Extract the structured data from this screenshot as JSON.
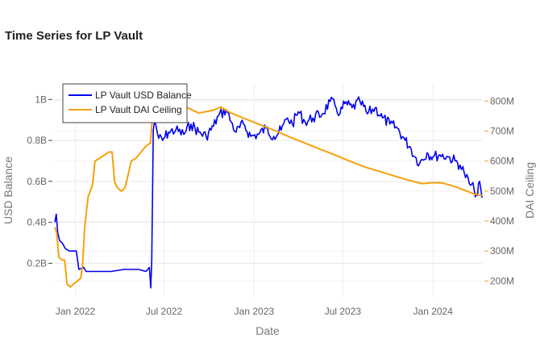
{
  "chart_data": {
    "type": "line",
    "title": "Time Series for LP Vault",
    "xlabel": "Date",
    "ylabel_left": "USD Balance",
    "ylabel_right": "DAI Ceiling",
    "x_range": [
      "2021-11-20",
      "2024-04-10"
    ],
    "x_ticks": [
      {
        "date": "2022-01-01",
        "label": "Jan 2022"
      },
      {
        "date": "2022-07-01",
        "label": "Jul 2022"
      },
      {
        "date": "2023-01-01",
        "label": "Jan 2023"
      },
      {
        "date": "2023-07-01",
        "label": "Jul 2023"
      },
      {
        "date": "2024-01-01",
        "label": "Jan 2024"
      }
    ],
    "y_left": {
      "range": [
        40000000,
        1080000000
      ],
      "ticks": [
        {
          "value": 200000000,
          "label": "0.2B"
        },
        {
          "value": 400000000,
          "label": "0.4B"
        },
        {
          "value": 600000000,
          "label": "0.6B"
        },
        {
          "value": 800000000,
          "label": "0.8B"
        },
        {
          "value": 1000000000,
          "label": "1B"
        }
      ]
    },
    "y_right": {
      "range": [
        150000000,
        860000000
      ],
      "ticks": [
        {
          "value": 200000000,
          "label": "200M"
        },
        {
          "value": 300000000,
          "label": "300M"
        },
        {
          "value": 400000000,
          "label": "400M"
        },
        {
          "value": 500000000,
          "label": "500M"
        },
        {
          "value": 600000000,
          "label": "600M"
        },
        {
          "value": 700000000,
          "label": "700M"
        },
        {
          "value": 800000000,
          "label": "800M"
        }
      ]
    },
    "grid": true,
    "legend": "top-left",
    "series": [
      {
        "name": "LP Vault USD Balance",
        "axis": "left",
        "color": "#0000ee",
        "points": [
          [
            "2021-11-20",
            400000000.0
          ],
          [
            "2021-11-23",
            440000000.0
          ],
          [
            "2021-11-26",
            350000000.0
          ],
          [
            "2021-11-30",
            310000000.0
          ],
          [
            "2021-12-05",
            300000000.0
          ],
          [
            "2021-12-12",
            270000000.0
          ],
          [
            "2021-12-20",
            260000000.0
          ],
          [
            "2021-12-28",
            260000000.0
          ],
          [
            "2022-01-03",
            260000000.0
          ],
          [
            "2022-01-08",
            170000000.0
          ],
          [
            "2022-01-18",
            180000000.0
          ],
          [
            "2022-01-23",
            160000000.0
          ],
          [
            "2022-02-10",
            160000000.0
          ],
          [
            "2022-03-15",
            160000000.0
          ],
          [
            "2022-04-10",
            170000000.0
          ],
          [
            "2022-05-10",
            170000000.0
          ],
          [
            "2022-05-25",
            160000000.0
          ],
          [
            "2022-06-01",
            180000000.0
          ],
          [
            "2022-06-04",
            80000000.0
          ],
          [
            "2022-06-06",
            220000000.0
          ],
          [
            "2022-06-09",
            850000000.0
          ],
          [
            "2022-06-12",
            900000000.0
          ],
          [
            "2022-06-20",
            810000000.0
          ],
          [
            "2022-06-28",
            800000000.0
          ],
          [
            "2022-07-10",
            840000000.0
          ],
          [
            "2022-07-25",
            850000000.0
          ],
          [
            "2022-08-10",
            830000000.0
          ],
          [
            "2022-08-25",
            880000000.0
          ],
          [
            "2022-09-10",
            840000000.0
          ],
          [
            "2022-09-25",
            820000000.0
          ],
          [
            "2022-10-10",
            870000000.0
          ],
          [
            "2022-10-20",
            920000000.0
          ],
          [
            "2022-11-05",
            950000000.0
          ],
          [
            "2022-11-15",
            890000000.0
          ],
          [
            "2022-11-25",
            840000000.0
          ],
          [
            "2022-12-10",
            880000000.0
          ],
          [
            "2022-12-25",
            820000000.0
          ],
          [
            "2023-01-10",
            830000000.0
          ],
          [
            "2023-01-25",
            860000000.0
          ],
          [
            "2023-02-10",
            820000000.0
          ],
          [
            "2023-02-25",
            850000000.0
          ],
          [
            "2023-03-10",
            910000000.0
          ],
          [
            "2023-03-20",
            880000000.0
          ],
          [
            "2023-04-01",
            940000000.0
          ],
          [
            "2023-04-15",
            890000000.0
          ],
          [
            "2023-05-01",
            910000000.0
          ],
          [
            "2023-05-20",
            930000000.0
          ],
          [
            "2023-06-05",
            990000000.0
          ],
          [
            "2023-06-15",
            970000000.0
          ],
          [
            "2023-06-25",
            930000000.0
          ],
          [
            "2023-07-05",
            980000000.0
          ],
          [
            "2023-07-20",
            960000000.0
          ],
          [
            "2023-08-05",
            990000000.0
          ],
          [
            "2023-08-20",
            930000000.0
          ],
          [
            "2023-09-05",
            960000000.0
          ],
          [
            "2023-09-20",
            910000000.0
          ],
          [
            "2023-10-05",
            880000000.0
          ],
          [
            "2023-10-20",
            860000000.0
          ],
          [
            "2023-11-05",
            800000000.0
          ],
          [
            "2023-11-15",
            770000000.0
          ],
          [
            "2023-11-25",
            720000000.0
          ],
          [
            "2023-12-05",
            690000000.0
          ],
          [
            "2023-12-20",
            740000000.0
          ],
          [
            "2024-01-01",
            720000000.0
          ],
          [
            "2024-01-15",
            730000000.0
          ],
          [
            "2024-02-01",
            720000000.0
          ],
          [
            "2024-02-15",
            700000000.0
          ],
          [
            "2024-02-25",
            680000000.0
          ],
          [
            "2024-03-05",
            640000000.0
          ],
          [
            "2024-03-15",
            590000000.0
          ],
          [
            "2024-03-25",
            560000000.0
          ],
          [
            "2024-04-01",
            530000000.0
          ],
          [
            "2024-04-05",
            600000000.0
          ],
          [
            "2024-04-10",
            520000000.0
          ]
        ]
      },
      {
        "name": "LP Vault DAI Ceiling",
        "axis": "right",
        "color": "#f5a10a",
        "points": [
          [
            "2021-11-20",
            380000000.0
          ],
          [
            "2021-11-24",
            360000000.0
          ],
          [
            "2021-11-28",
            280000000.0
          ],
          [
            "2021-12-05",
            270000000.0
          ],
          [
            "2021-12-10",
            270000000.0
          ],
          [
            "2021-12-15",
            190000000.0
          ],
          [
            "2021-12-22",
            180000000.0
          ],
          [
            "2021-12-28",
            190000000.0
          ],
          [
            "2022-01-05",
            200000000.0
          ],
          [
            "2022-01-12",
            210000000.0
          ],
          [
            "2022-01-16",
            260000000.0
          ],
          [
            "2022-01-20",
            380000000.0
          ],
          [
            "2022-01-27",
            480000000.0
          ],
          [
            "2022-02-05",
            520000000.0
          ],
          [
            "2022-02-10",
            600000000.0
          ],
          [
            "2022-02-20",
            610000000.0
          ],
          [
            "2022-03-01",
            620000000.0
          ],
          [
            "2022-03-10",
            630000000.0
          ],
          [
            "2022-03-17",
            630000000.0
          ],
          [
            "2022-03-22",
            530000000.0
          ],
          [
            "2022-03-28",
            510000000.0
          ],
          [
            "2022-04-05",
            500000000.0
          ],
          [
            "2022-04-12",
            510000000.0
          ],
          [
            "2022-04-18",
            550000000.0
          ],
          [
            "2022-04-25",
            600000000.0
          ],
          [
            "2022-05-05",
            610000000.0
          ],
          [
            "2022-05-15",
            630000000.0
          ],
          [
            "2022-05-25",
            650000000.0
          ],
          [
            "2022-06-03",
            660000000.0
          ],
          [
            "2022-06-07",
            740000000.0
          ],
          [
            "2022-06-10",
            850000000.0
          ],
          [
            "2022-06-20",
            820000000.0
          ],
          [
            "2022-07-15",
            800000000.0
          ],
          [
            "2022-08-15",
            780000000.0
          ],
          [
            "2022-09-10",
            760000000.0
          ],
          [
            "2022-10-10",
            770000000.0
          ],
          [
            "2022-10-25",
            780000000.0
          ],
          [
            "2022-11-15",
            760000000.0
          ],
          [
            "2022-12-15",
            740000000.0
          ],
          [
            "2023-01-15",
            720000000.0
          ],
          [
            "2023-02-15",
            700000000.0
          ],
          [
            "2023-03-15",
            680000000.0
          ],
          [
            "2023-04-15",
            660000000.0
          ],
          [
            "2023-05-15",
            640000000.0
          ],
          [
            "2023-06-15",
            620000000.0
          ],
          [
            "2023-07-15",
            600000000.0
          ],
          [
            "2023-08-15",
            580000000.0
          ],
          [
            "2023-09-15",
            565000000.0
          ],
          [
            "2023-10-15",
            550000000.0
          ],
          [
            "2023-11-15",
            535000000.0
          ],
          [
            "2023-12-10",
            525000000.0
          ],
          [
            "2024-01-01",
            528000000.0
          ],
          [
            "2024-01-20",
            527000000.0
          ],
          [
            "2024-02-15",
            515000000.0
          ],
          [
            "2024-03-10",
            500000000.0
          ],
          [
            "2024-03-25",
            490000000.0
          ],
          [
            "2024-04-10",
            485000000.0
          ]
        ]
      }
    ]
  }
}
